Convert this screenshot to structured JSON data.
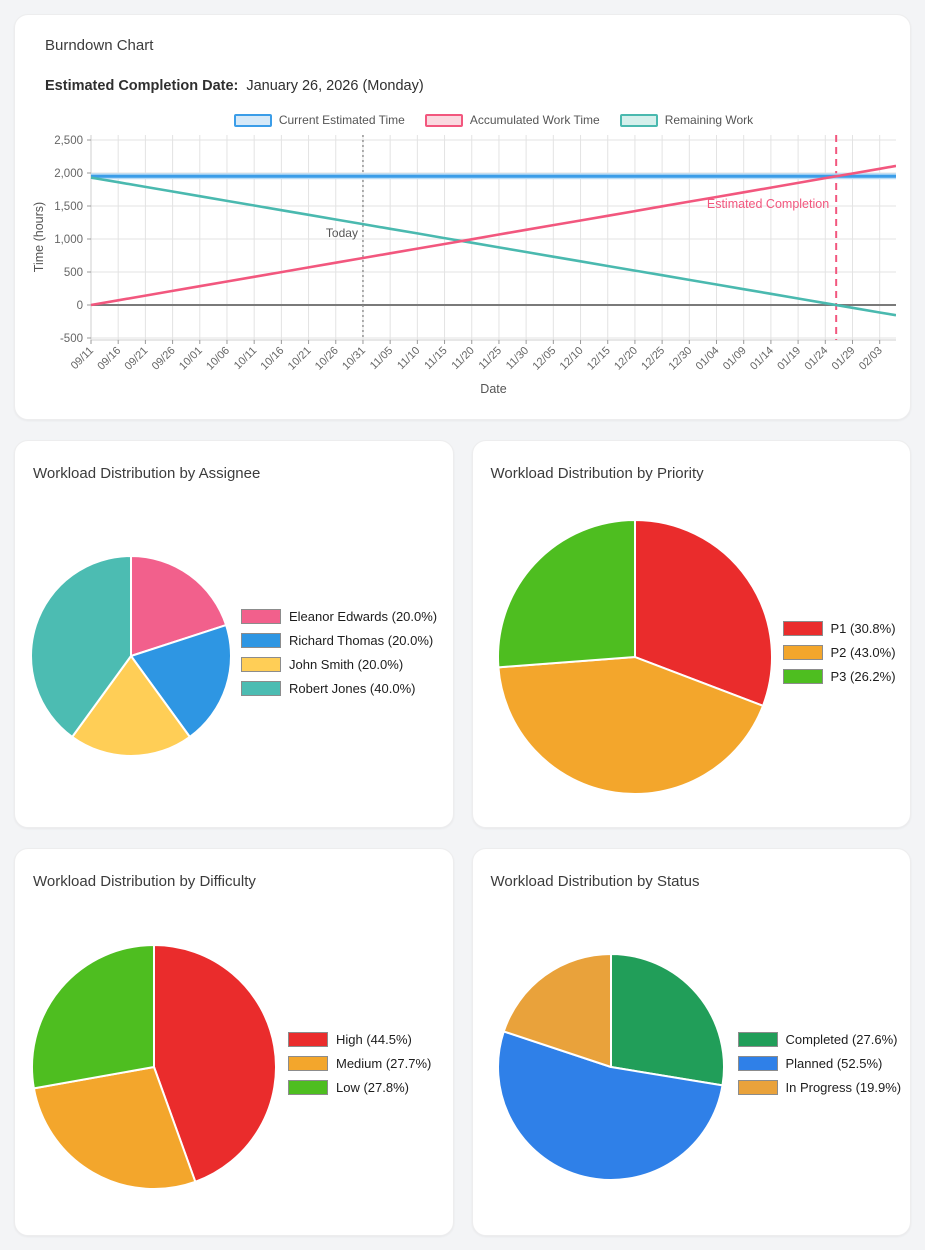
{
  "burndown": {
    "title": "Burndown Chart",
    "completion_label": "Estimated Completion Date:",
    "completion_value": "January 26, 2026 (Monday)"
  },
  "pie_titles": {
    "assignee": "Workload Distribution by Assignee",
    "priority": "Workload Distribution by Priority",
    "difficulty": "Workload Distribution by Difficulty",
    "status": "Workload Distribution by Status"
  },
  "chart_data": [
    {
      "type": "line",
      "title": "Burndown Chart",
      "xlabel": "Date",
      "ylabel": "Time (hours)",
      "x_unit": "days since 09/11",
      "xlim": [
        0,
        148
      ],
      "ylim": [
        -530,
        2570
      ],
      "grid": true,
      "legend_position": "top",
      "yticks": [
        -500,
        0,
        500,
        1000,
        1500,
        2000,
        2500
      ],
      "ytick_labels": [
        "-500",
        "0",
        "500",
        "1,000",
        "1,500",
        "2,000",
        "2,500"
      ],
      "xtick_days": [
        0,
        5,
        10,
        15,
        20,
        25,
        30,
        35,
        40,
        45,
        50,
        55,
        60,
        65,
        70,
        75,
        80,
        85,
        90,
        95,
        100,
        105,
        110,
        115,
        120,
        125,
        130,
        135,
        140,
        145
      ],
      "xtick_labels": [
        "09/11",
        "09/16",
        "09/21",
        "09/26",
        "10/01",
        "10/06",
        "10/11",
        "10/16",
        "10/21",
        "10/26",
        "10/31",
        "11/05",
        "11/10",
        "11/15",
        "11/20",
        "11/25",
        "11/30",
        "12/05",
        "12/10",
        "12/15",
        "12/20",
        "12/25",
        "12/30",
        "01/04",
        "01/09",
        "01/14",
        "01/19",
        "01/24",
        "01/29",
        "02/03"
      ],
      "series": [
        {
          "name": "Current Estimated Time",
          "color": "#3b9de8",
          "halo": "#b9dcf6",
          "legend_fill": "#d6e9f8",
          "x": [
            0,
            148
          ],
          "y": [
            1950,
            1950
          ]
        },
        {
          "name": "Accumulated Work Time",
          "color": "#f2577e",
          "legend_fill": "#fad9e0",
          "x": [
            0,
            5,
            10,
            15,
            20,
            25,
            30,
            35,
            40,
            45,
            50,
            55,
            60,
            65,
            70,
            75,
            80,
            85,
            90,
            95,
            100,
            105,
            110,
            115,
            120,
            125,
            130,
            135,
            140,
            145,
            148
          ],
          "y": [
            0,
            71,
            142,
            214,
            285,
            356,
            427,
            498,
            569,
            641,
            712,
            783,
            854,
            925,
            996,
            1068,
            1139,
            1210,
            1281,
            1352,
            1423,
            1495,
            1566,
            1637,
            1708,
            1779,
            1850,
            1922,
            1993,
            2064,
            2107
          ]
        },
        {
          "name": "Remaining Work",
          "color": "#4ab9af",
          "legend_fill": "#d5f0ec",
          "x": [
            0,
            5,
            10,
            15,
            20,
            25,
            30,
            35,
            40,
            45,
            50,
            55,
            60,
            65,
            70,
            75,
            80,
            85,
            90,
            95,
            100,
            105,
            110,
            115,
            120,
            125,
            130,
            135,
            140,
            145,
            148
          ],
          "y": [
            1930,
            1860,
            1789,
            1719,
            1648,
            1578,
            1507,
            1437,
            1366,
            1296,
            1226,
            1155,
            1085,
            1014,
            944,
            873,
            803,
            732,
            662,
            591,
            521,
            451,
            380,
            310,
            239,
            169,
            98,
            28,
            -42,
            -113,
            -155
          ]
        }
      ],
      "annotations": {
        "today": {
          "label": "Today",
          "day": 50,
          "color": "#8a8a8a",
          "text_color": "#555555"
        },
        "estimated_completion": {
          "label": "Estimated Completion",
          "day": 137,
          "color": "#f2577e"
        }
      },
      "zero_line_color": "#7a7a7a"
    },
    {
      "type": "pie",
      "title": "Workload Distribution by Assignee",
      "start_angle": "top",
      "direction": "clockwise",
      "slices": [
        {
          "label": "Eleanor Edwards",
          "pct": 20.0,
          "color": "#f2608c",
          "display": "Eleanor Edwards (20.0%)"
        },
        {
          "label": "Richard Thomas",
          "pct": 20.0,
          "color": "#2e96e3",
          "display": "Richard Thomas (20.0%)"
        },
        {
          "label": "John Smith",
          "pct": 20.0,
          "color": "#ffce56",
          "display": "John Smith (20.0%)"
        },
        {
          "label": "Robert Jones",
          "pct": 40.0,
          "color": "#4cbcb2",
          "display": "Robert Jones (40.0%)"
        }
      ]
    },
    {
      "type": "pie",
      "title": "Workload Distribution by Priority",
      "start_angle": "top",
      "direction": "clockwise",
      "slices": [
        {
          "label": "P1",
          "pct": 30.8,
          "color": "#ea2c2c",
          "display": "P1 (30.8%)"
        },
        {
          "label": "P2",
          "pct": 43.0,
          "color": "#f3a62c",
          "display": "P2 (43.0%)"
        },
        {
          "label": "P3",
          "pct": 26.2,
          "color": "#4ebe20",
          "display": "P3 (26.2%)"
        }
      ]
    },
    {
      "type": "pie",
      "title": "Workload Distribution by Difficulty",
      "start_angle": "top",
      "direction": "clockwise",
      "slices": [
        {
          "label": "High",
          "pct": 44.5,
          "color": "#ea2c2c",
          "display": "High (44.5%)"
        },
        {
          "label": "Medium",
          "pct": 27.7,
          "color": "#f3a62c",
          "display": "Medium (27.7%)"
        },
        {
          "label": "Low",
          "pct": 27.8,
          "color": "#4ebe20",
          "display": "Low (27.8%)"
        }
      ]
    },
    {
      "type": "pie",
      "title": "Workload Distribution by Status",
      "start_angle": "top",
      "direction": "clockwise",
      "slices": [
        {
          "label": "Completed",
          "pct": 27.6,
          "color": "#219e59",
          "display": "Completed (27.6%)"
        },
        {
          "label": "Planned",
          "pct": 52.5,
          "color": "#2f80e8",
          "display": "Planned (52.5%)"
        },
        {
          "label": "In Progress",
          "pct": 19.9,
          "color": "#e9a23b",
          "display": "In Progress (19.9%)"
        }
      ]
    }
  ]
}
